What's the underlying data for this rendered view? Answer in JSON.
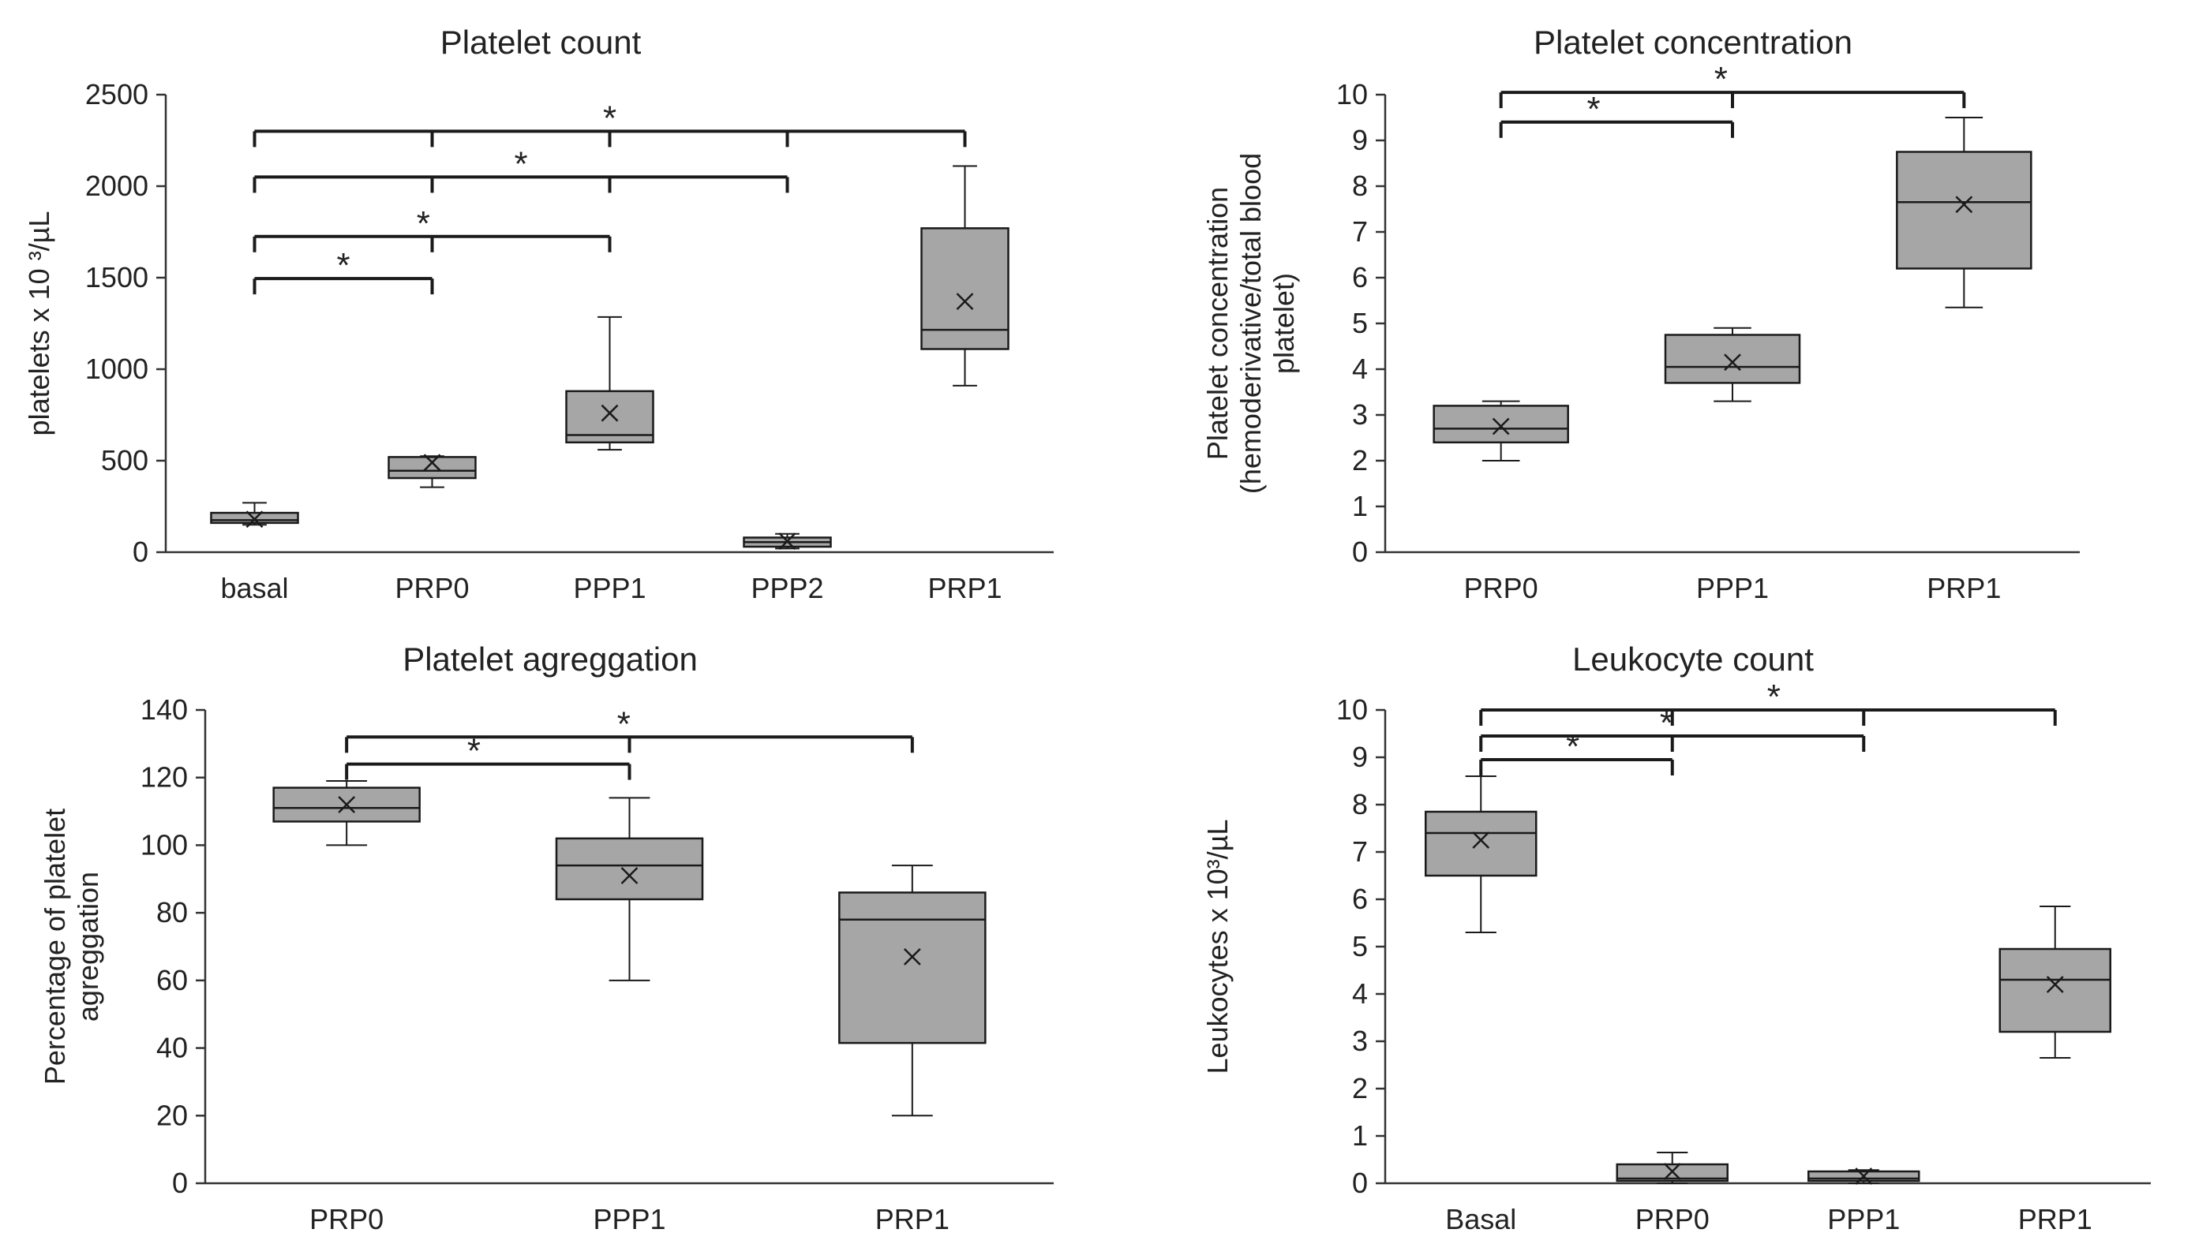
{
  "colors": {
    "box_fill": "#a6a6a6",
    "stroke": "#1a1a1a",
    "line": "#333333"
  },
  "chart_data": [
    {
      "type": "box",
      "title": "Platelet count",
      "ylabel": [
        "platelets x 10 ³/µL"
      ],
      "ylim": [
        0,
        2500
      ],
      "yticks": [
        0,
        500,
        1000,
        1500,
        2000,
        2500
      ],
      "categories": [
        "basal",
        "PRP0",
        "PPP1",
        "PPP2",
        "PRP1"
      ],
      "boxes": [
        {
          "min": 150,
          "q1": 160,
          "median": 175,
          "q3": 215,
          "max": 270,
          "mean": 180
        },
        {
          "min": 355,
          "q1": 405,
          "median": 445,
          "q3": 520,
          "max": 525,
          "mean": 490
        },
        {
          "min": 560,
          "q1": 600,
          "median": 640,
          "q3": 880,
          "max": 1285,
          "mean": 760
        },
        {
          "min": 20,
          "q1": 30,
          "median": 55,
          "q3": 80,
          "max": 100,
          "mean": 60
        },
        {
          "min": 910,
          "q1": 1110,
          "median": 1215,
          "q3": 1770,
          "max": 2110,
          "mean": 1370
        }
      ],
      "significance": [
        {
          "from": 0,
          "to": 1,
          "ticks": [
            0,
            1
          ],
          "y": 1495,
          "star_at": 0.5,
          "label": "*"
        },
        {
          "from": 0,
          "to": 2,
          "ticks": [
            0,
            1,
            2
          ],
          "y": 1725,
          "star_at": 0.95,
          "label": "*"
        },
        {
          "from": 0,
          "to": 3,
          "ticks": [
            0,
            1,
            2,
            3
          ],
          "y": 2050,
          "star_at": 1.5,
          "label": "*"
        },
        {
          "from": 0,
          "to": 4,
          "ticks": [
            0,
            1,
            2,
            3,
            4
          ],
          "y": 2300,
          "star_at": 2.0,
          "label": "*"
        }
      ]
    },
    {
      "type": "box",
      "title": "Platelet concentration",
      "ylabel": [
        "Platelet concentration",
        "(hemoderivative/total blood",
        "platelet)"
      ],
      "ylim": [
        0,
        10
      ],
      "yticks": [
        0,
        1,
        2,
        3,
        4,
        5,
        6,
        7,
        8,
        9,
        10
      ],
      "categories": [
        "PRP0",
        "PPP1",
        "PRP1"
      ],
      "boxes": [
        {
          "min": 2.0,
          "q1": 2.4,
          "median": 2.7,
          "q3": 3.2,
          "max": 3.3,
          "mean": 2.75
        },
        {
          "min": 3.3,
          "q1": 3.7,
          "median": 4.05,
          "q3": 4.75,
          "max": 4.9,
          "mean": 4.15
        },
        {
          "min": 5.35,
          "q1": 6.2,
          "median": 7.65,
          "q3": 8.75,
          "max": 9.5,
          "mean": 7.6
        }
      ],
      "significance": [
        {
          "from": 0,
          "to": 1,
          "ticks": [
            0,
            1
          ],
          "y": 9.4,
          "star_at": 0.4,
          "label": "*"
        },
        {
          "from": 0,
          "to": 2,
          "ticks": [
            0,
            1,
            2
          ],
          "y": 10.05,
          "star_at": 0.95,
          "label": "*"
        }
      ]
    },
    {
      "type": "box",
      "title": "Platelet agreggation",
      "ylabel": [
        "Percentage of platelet",
        "agreggation"
      ],
      "ylim": [
        0,
        140
      ],
      "yticks": [
        0,
        20,
        40,
        60,
        80,
        100,
        120,
        140
      ],
      "categories": [
        "PRP0",
        "PPP1",
        "PRP1"
      ],
      "boxes": [
        {
          "min": 100,
          "q1": 107,
          "median": 111,
          "q3": 117,
          "max": 119,
          "mean": 112
        },
        {
          "min": 60,
          "q1": 84,
          "median": 94,
          "q3": 102,
          "max": 114,
          "mean": 91
        },
        {
          "min": 20,
          "q1": 41.5,
          "median": 78,
          "q3": 86,
          "max": 94,
          "mean": 67
        }
      ],
      "significance": [
        {
          "from": 0,
          "to": 1,
          "ticks": [
            0,
            1
          ],
          "y": 124,
          "star_at": 0.45,
          "label": "*"
        },
        {
          "from": 0,
          "to": 2,
          "ticks": [
            0,
            1,
            2
          ],
          "y": 132,
          "star_at": 0.98,
          "label": "*"
        }
      ]
    },
    {
      "type": "box",
      "title": "Leukocyte count",
      "ylabel": [
        "Leukocytes x 10³/µL"
      ],
      "ylim": [
        0,
        10
      ],
      "yticks": [
        0,
        1,
        2,
        3,
        4,
        5,
        6,
        7,
        8,
        9,
        10
      ],
      "categories": [
        "Basal",
        "PRP0",
        "PPP1",
        "PRP1"
      ],
      "boxes": [
        {
          "min": 5.3,
          "q1": 6.5,
          "median": 7.4,
          "q3": 7.85,
          "max": 8.6,
          "mean": 7.25
        },
        {
          "min": 0.0,
          "q1": 0.05,
          "median": 0.1,
          "q3": 0.4,
          "max": 0.65,
          "mean": 0.25
        },
        {
          "min": 0.0,
          "q1": 0.05,
          "median": 0.1,
          "q3": 0.25,
          "max": 0.28,
          "mean": 0.15
        },
        {
          "min": 2.65,
          "q1": 3.2,
          "median": 4.3,
          "q3": 4.95,
          "max": 5.85,
          "mean": 4.2
        }
      ],
      "significance": [
        {
          "from": 0,
          "to": 1,
          "ticks": [
            0,
            1
          ],
          "y": 8.95,
          "star_at": 0.48,
          "label": "*"
        },
        {
          "from": 0,
          "to": 2,
          "ticks": [
            0,
            1,
            2
          ],
          "y": 9.45,
          "star_at": 0.97,
          "label": "*"
        },
        {
          "from": 0,
          "to": 3,
          "ticks": [
            0,
            1,
            2,
            3
          ],
          "y": 10.0,
          "star_at": 1.53,
          "label": "*"
        }
      ]
    }
  ]
}
